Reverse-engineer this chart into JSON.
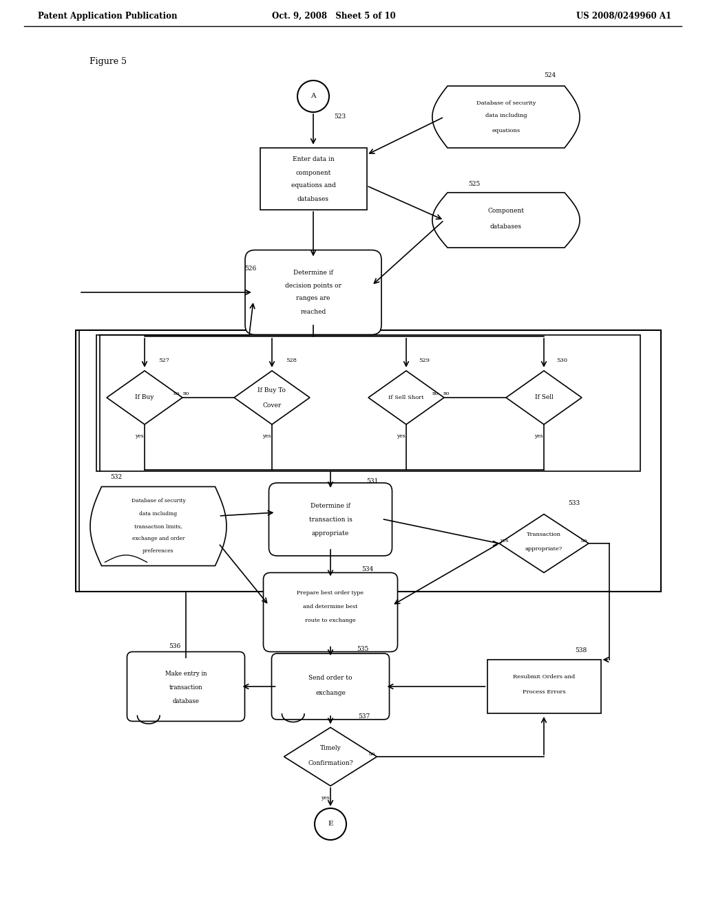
{
  "bg_color": "#ffffff",
  "header_left": "Patent Application Publication",
  "header_mid": "Oct. 9, 2008   Sheet 5 of 10",
  "header_right": "US 2008/0249960 A1",
  "figure_label": "Figure 5"
}
